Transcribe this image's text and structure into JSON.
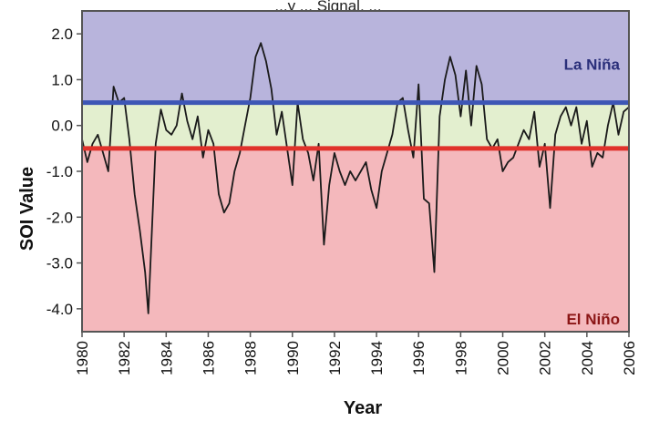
{
  "chart_data": {
    "type": "line",
    "title": "...y ... Signal, ...",
    "xlabel": "Year",
    "ylabel": "SOI Value",
    "xlim": [
      1980,
      2006
    ],
    "ylim": [
      -4.5,
      2.5
    ],
    "x_ticks": [
      1980,
      1982,
      1984,
      1986,
      1988,
      1990,
      1992,
      1994,
      1996,
      1998,
      2000,
      2002,
      2004,
      2006
    ],
    "y_ticks": [
      2.0,
      1.0,
      0.0,
      -1.0,
      -2.0,
      -3.0,
      -4.0
    ],
    "y_tick_labels": [
      "2.0",
      "1.0",
      "0.0",
      "-1.0",
      "-2.0",
      "-3.0",
      "-4.0"
    ],
    "grid": false,
    "zones": [
      {
        "label": "La Niña",
        "from": 0.5,
        "to": 2.5,
        "color": "#b8b4dc",
        "label_color": "#2a2f7a"
      },
      {
        "label": "",
        "from": -0.5,
        "to": 0.5,
        "color": "#e3efcf",
        "label_color": ""
      },
      {
        "label": "El Niño",
        "from": -4.5,
        "to": -0.5,
        "color": "#f4b8bc",
        "label_color": "#8b1515"
      }
    ],
    "threshold_lines": [
      {
        "value": 0.5,
        "color": "#3d56b5"
      },
      {
        "value": -0.5,
        "color": "#e0322b"
      }
    ],
    "series": [
      {
        "color": "#1a1a1a",
        "x": [
          1980.0,
          1980.25,
          1980.5,
          1980.75,
          1981.0,
          1981.25,
          1981.5,
          1981.75,
          1982.0,
          1982.25,
          1982.5,
          1982.75,
          1983.0,
          1983.15,
          1983.3,
          1983.5,
          1983.75,
          1984.0,
          1984.25,
          1984.5,
          1984.75,
          1985.0,
          1985.25,
          1985.5,
          1985.75,
          1986.0,
          1986.25,
          1986.5,
          1986.75,
          1987.0,
          1987.25,
          1987.5,
          1987.75,
          1988.0,
          1988.25,
          1988.5,
          1988.75,
          1989.0,
          1989.25,
          1989.5,
          1989.75,
          1990.0,
          1990.25,
          1990.5,
          1990.75,
          1991.0,
          1991.25,
          1991.5,
          1991.75,
          1992.0,
          1992.25,
          1992.5,
          1992.75,
          1993.0,
          1993.25,
          1993.5,
          1993.75,
          1994.0,
          1994.25,
          1994.5,
          1994.75,
          1995.0,
          1995.25,
          1995.5,
          1995.75,
          1996.0,
          1996.25,
          1996.5,
          1996.75,
          1997.0,
          1997.25,
          1997.5,
          1997.75,
          1998.0,
          1998.25,
          1998.5,
          1998.75,
          1999.0,
          1999.25,
          1999.5,
          1999.75,
          2000.0,
          2000.25,
          2000.5,
          2000.75,
          2001.0,
          2001.25,
          2001.5,
          2001.75,
          2002.0,
          2002.25,
          2002.5,
          2002.75,
          2003.0,
          2003.25,
          2003.5,
          2003.75,
          2004.0,
          2004.25,
          2004.5,
          2004.75,
          2005.0,
          2005.25,
          2005.5,
          2005.75,
          2006.0
        ],
        "values": [
          -0.3,
          -0.8,
          -0.4,
          -0.2,
          -0.6,
          -1.0,
          0.85,
          0.5,
          0.6,
          -0.3,
          -1.5,
          -2.3,
          -3.2,
          -4.1,
          -2.5,
          -0.4,
          0.35,
          -0.1,
          -0.2,
          0.0,
          0.7,
          0.1,
          -0.3,
          0.2,
          -0.7,
          -0.1,
          -0.4,
          -1.5,
          -1.9,
          -1.7,
          -1.0,
          -0.6,
          0.0,
          0.6,
          1.5,
          1.8,
          1.4,
          0.8,
          -0.2,
          0.3,
          -0.5,
          -1.3,
          0.5,
          -0.3,
          -0.6,
          -1.2,
          -0.4,
          -2.6,
          -1.3,
          -0.6,
          -1.0,
          -1.3,
          -1.0,
          -1.2,
          -1.0,
          -0.8,
          -1.4,
          -1.8,
          -1.0,
          -0.6,
          -0.2,
          0.5,
          0.6,
          -0.1,
          -0.7,
          0.9,
          -1.6,
          -1.7,
          -3.2,
          0.2,
          1.0,
          1.5,
          1.1,
          0.2,
          1.2,
          0.0,
          1.3,
          0.9,
          -0.3,
          -0.5,
          -0.3,
          -1.0,
          -0.8,
          -0.7,
          -0.4,
          -0.1,
          -0.3,
          0.3,
          -0.9,
          -0.4,
          -1.8,
          -0.2,
          0.2,
          0.4,
          0.0,
          0.4,
          -0.4,
          0.1,
          -0.9,
          -0.6,
          -0.7,
          0.0,
          0.5,
          -0.2,
          0.3,
          0.4
        ]
      }
    ]
  }
}
